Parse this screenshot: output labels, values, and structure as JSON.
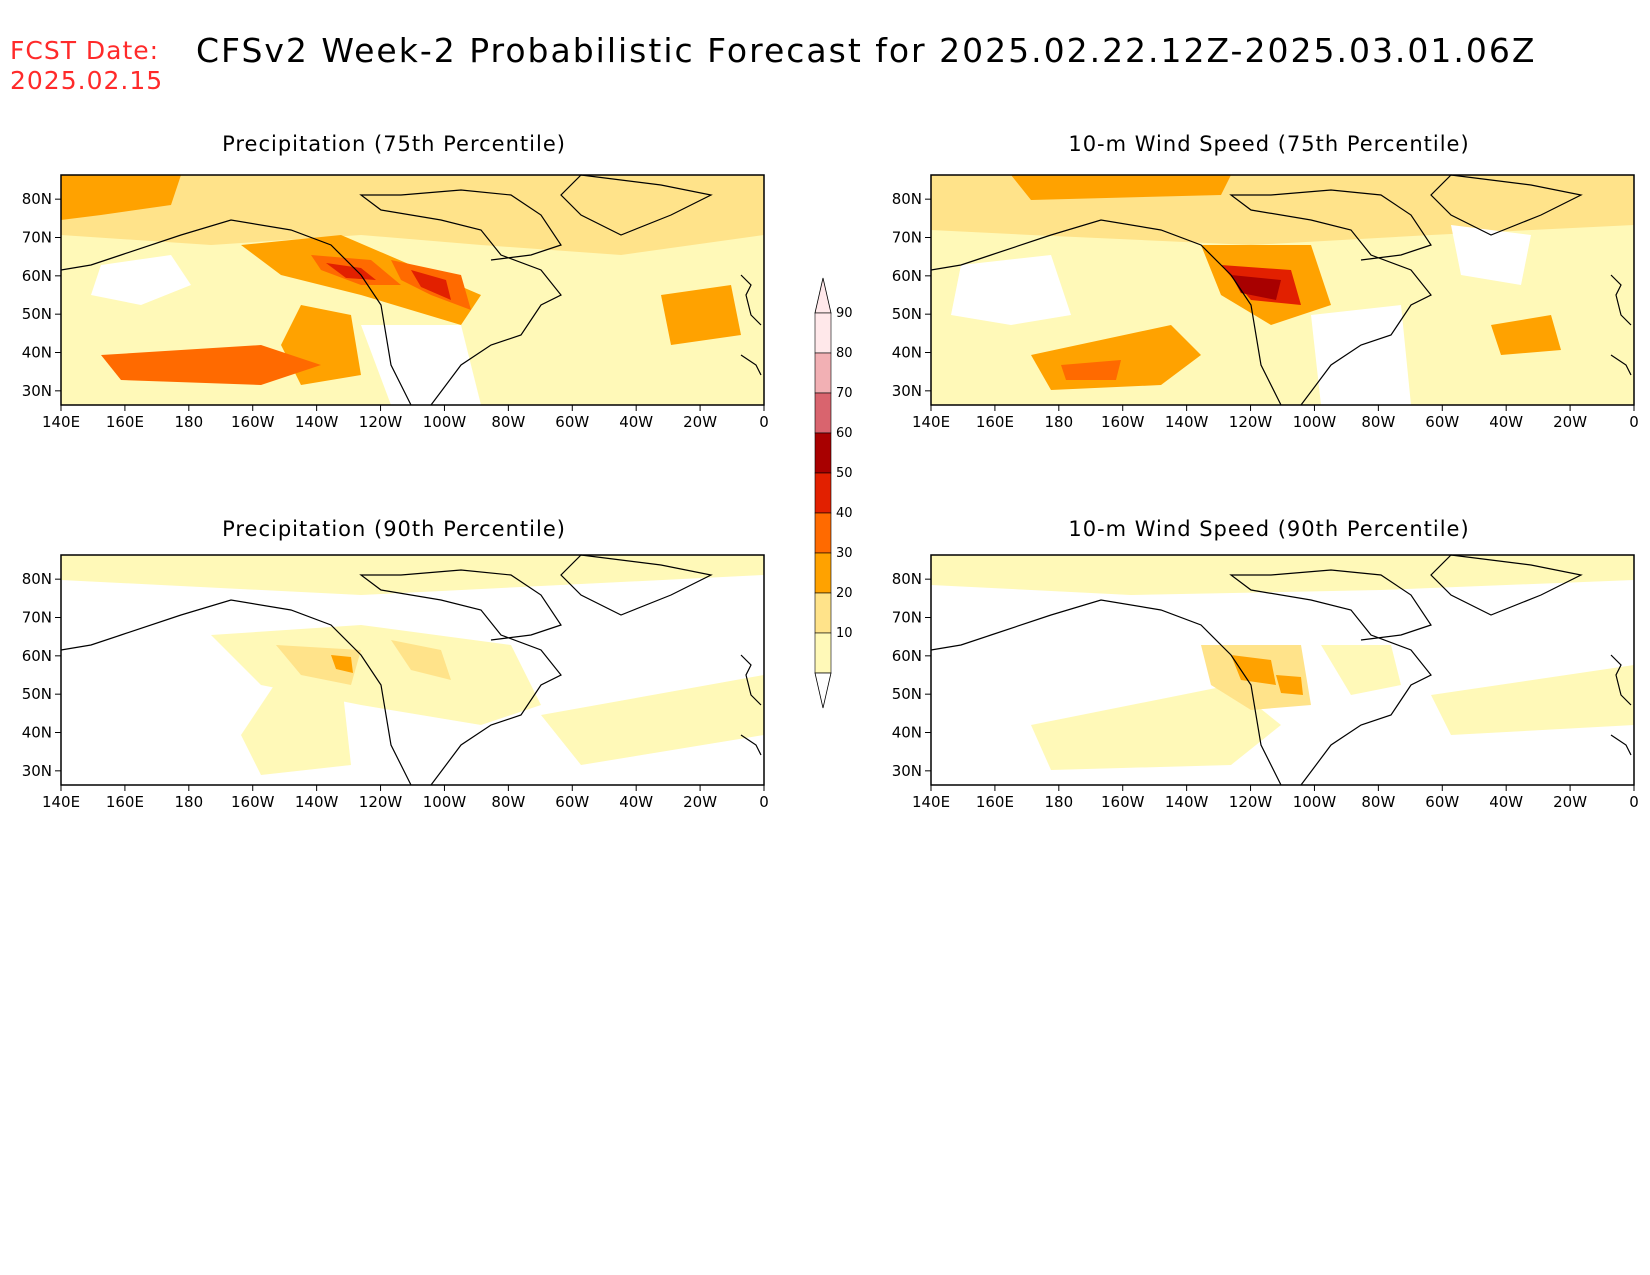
{
  "header": {
    "fcst_label": "FCST Date:",
    "fcst_date": "2025.02.15",
    "title": "CFSv2 Week-2 Probabilistic Forecast for 2025.02.22.12Z-2025.03.01.06Z"
  },
  "panels": [
    {
      "title": "Precipitation (75th Percentile)"
    },
    {
      "title": "10-m Wind Speed (75th Percentile)"
    },
    {
      "title": "Precipitation (90th Percentile)"
    },
    {
      "title": "10-m Wind Speed (90th Percentile)"
    }
  ],
  "axes": {
    "lon_labels": [
      "140E",
      "160E",
      "180",
      "160W",
      "140W",
      "120W",
      "100W",
      "80W",
      "60W",
      "40W",
      "20W",
      "0"
    ],
    "lat_labels": [
      "80N",
      "70N",
      "60N",
      "50N",
      "40N",
      "30N"
    ]
  },
  "colorbar": {
    "levels": [
      "10",
      "20",
      "30",
      "40",
      "50",
      "60",
      "70",
      "80",
      "90"
    ],
    "colors": [
      "#fff9b8",
      "#ffe38a",
      "#ffa200",
      "#ff6a00",
      "#e22000",
      "#a80000",
      "#d9646e",
      "#f2b0b4",
      "#ffe8ea"
    ]
  }
}
